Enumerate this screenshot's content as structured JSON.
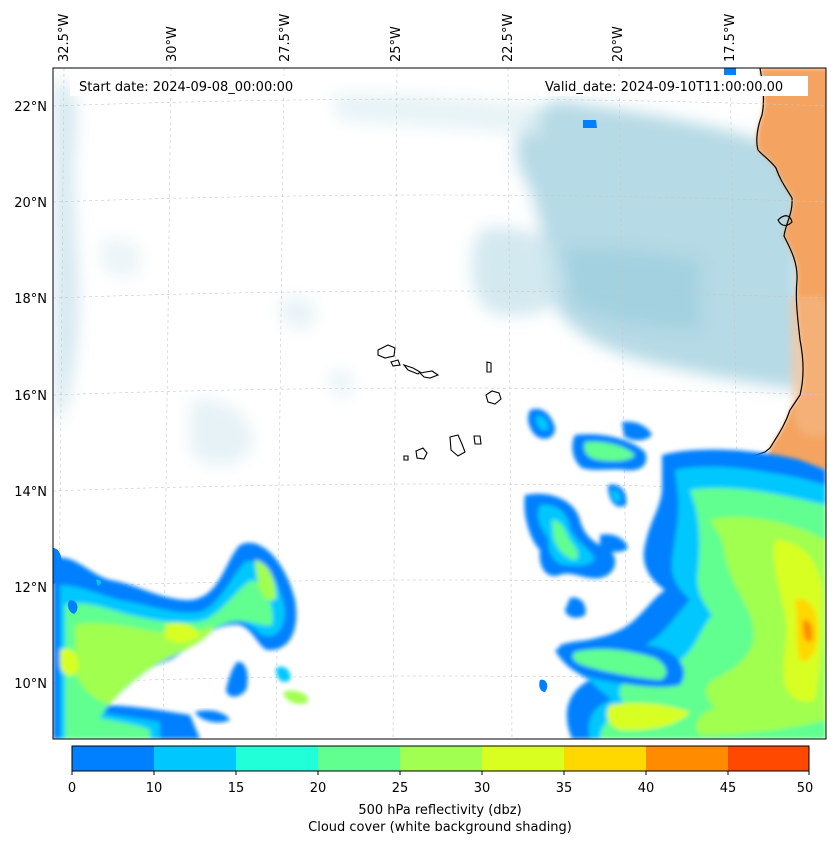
{
  "map": {
    "start_date_label": "Start date: 2024-09-08_00:00:00",
    "valid_date_label": "Valid_date: 2024-09-10T11:00:00.00",
    "lon_ticks": [
      "32.5°W",
      "30°W",
      "27.5°W",
      "25°W",
      "22.5°W",
      "20°W",
      "17.5°W"
    ],
    "lat_ticks": [
      "22°N",
      "20°N",
      "18°N",
      "16°N",
      "14°N",
      "12°N",
      "10°N"
    ],
    "colors": {
      "land": "#f4a460",
      "cloud": "#a9d4e2",
      "coastline": "#000000"
    }
  },
  "colorbar": {
    "ticks": [
      "0",
      "10",
      "15",
      "20",
      "25",
      "30",
      "35",
      "40",
      "45",
      "50"
    ],
    "colors": [
      "#0080ff",
      "#00c8ff",
      "#20ffd8",
      "#60ff90",
      "#a0ff50",
      "#d8ff20",
      "#ffd800",
      "#ff8c00",
      "#ff4800"
    ],
    "label_line1": "500 hPa reflectivity (dbz)",
    "label_line2": "Cloud cover (white background shading)"
  }
}
